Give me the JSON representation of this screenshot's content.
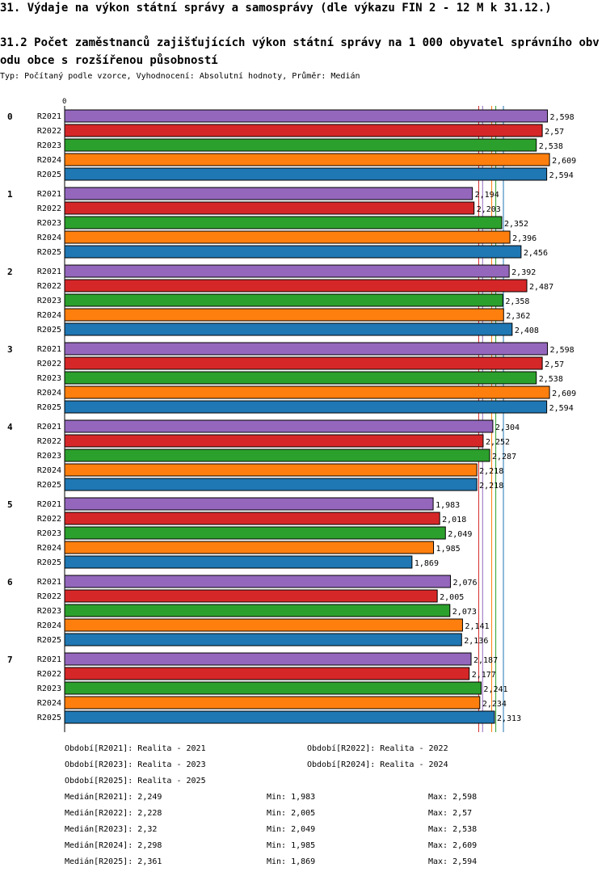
{
  "header": {
    "title": "31. Výdaje na výkon státní správy a samosprávy (dle výkazu FIN 2 - 12 M k 31.12.)",
    "subtitle": "31.2 Počet zaměstnanců zajišťujících výkon státní správy na 1 000 obyvatel správního obvodu obce s rozšířenou působností",
    "type_line": "Typ: Počítaný podle vzorce, Vyhodnocení: Absolutní hodnoty, Průměr: Medián"
  },
  "chart_data": {
    "type": "bar",
    "orientation": "horizontal",
    "title": "31.2 Počet zaměstnanců zajišťujících výkon státní správy na 1 000 obyvatel správního obvodu obce s rozšířenou působností",
    "axis_zero_label": "0",
    "x_range": [
      0,
      2.74
    ],
    "categories": [
      "0",
      "1",
      "2",
      "3",
      "4",
      "5",
      "6",
      "7"
    ],
    "series": [
      {
        "name": "R2021",
        "color": "#9467bd",
        "values": [
          2.598,
          2.194,
          2.392,
          2.598,
          2.304,
          1.983,
          2.076,
          2.187
        ],
        "labels": [
          "2,598",
          "2,194",
          "2,392",
          "2,598",
          "2,304",
          "1,983",
          "2,076",
          "2,187"
        ]
      },
      {
        "name": "R2022",
        "color": "#d62728",
        "values": [
          2.57,
          2.203,
          2.487,
          2.57,
          2.252,
          2.018,
          2.005,
          2.177
        ],
        "labels": [
          "2,57",
          "2,203",
          "2,487",
          "2,57",
          "2,252",
          "2,018",
          "2,005",
          "2,177"
        ]
      },
      {
        "name": "R2023",
        "color": "#2ca02c",
        "values": [
          2.538,
          2.352,
          2.358,
          2.538,
          2.287,
          2.049,
          2.073,
          2.241
        ],
        "labels": [
          "2,538",
          "2,352",
          "2,358",
          "2,538",
          "2,287",
          "2,049",
          "2,073",
          "2,241"
        ]
      },
      {
        "name": "R2024",
        "color": "#ff7f0e",
        "values": [
          2.609,
          2.396,
          2.362,
          2.609,
          2.218,
          1.985,
          2.141,
          2.234
        ],
        "labels": [
          "2,609",
          "2,396",
          "2,362",
          "2,609",
          "2,218",
          "1,985",
          "2,141",
          "2,234"
        ]
      },
      {
        "name": "R2025",
        "color": "#1f77b4",
        "values": [
          2.594,
          2.456,
          2.408,
          2.594,
          2.218,
          1.869,
          2.136,
          2.313
        ],
        "labels": [
          "2,594",
          "2,456",
          "2,408",
          "2,594",
          "2,218",
          "1,869",
          "2,136",
          "2,313"
        ]
      }
    ],
    "median_lines": [
      {
        "series": "R2021",
        "value": 2.249,
        "color": "#9467bd"
      },
      {
        "series": "R2022",
        "value": 2.228,
        "color": "#d62728"
      },
      {
        "series": "R2023",
        "value": 2.32,
        "color": "#2ca02c"
      },
      {
        "series": "R2024",
        "value": 2.298,
        "color": "#ff7f0e"
      },
      {
        "series": "R2025",
        "value": 2.361,
        "color": "#1f77b4"
      }
    ]
  },
  "legend": {
    "periods": [
      "Období[R2021]: Realita - 2021",
      "Období[R2022]: Realita - 2022",
      "Období[R2023]: Realita - 2023",
      "Období[R2024]: Realita - 2024",
      "Období[R2025]: Realita - 2025"
    ],
    "stats": [
      {
        "median": "Medián[R2021]: 2,249",
        "min": "Min: 1,983",
        "max": "Max: 2,598"
      },
      {
        "median": "Medián[R2022]: 2,228",
        "min": "Min: 2,005",
        "max": "Max: 2,57"
      },
      {
        "median": "Medián[R2023]: 2,32",
        "min": "Min: 2,049",
        "max": "Max: 2,538"
      },
      {
        "median": "Medián[R2024]: 2,298",
        "min": "Min: 1,985",
        "max": "Max: 2,609"
      },
      {
        "median": "Medián[R2025]: 2,361",
        "min": "Min: 1,869",
        "max": "Max: 2,594"
      }
    ]
  }
}
